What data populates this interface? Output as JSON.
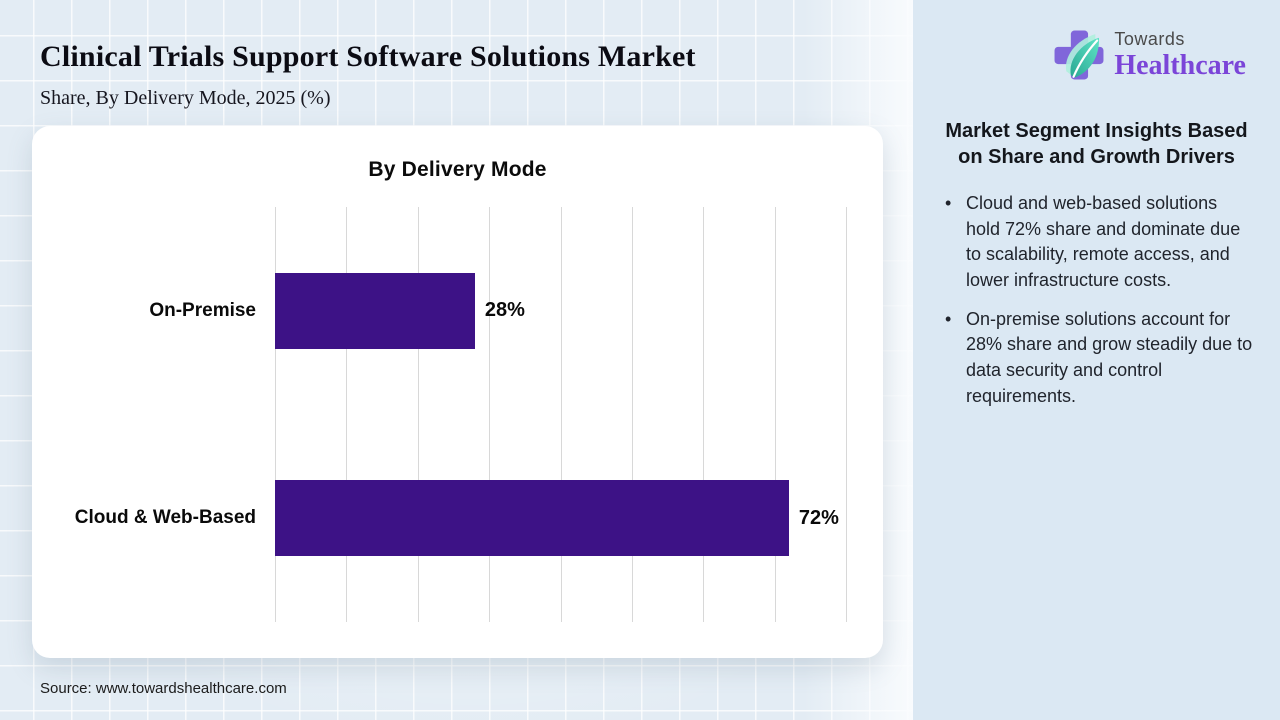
{
  "page": {
    "title": "Clinical Trials Support Software Solutions Market",
    "subtitle": "Share, By Delivery Mode, 2025 (%)",
    "source": "Source: www.towardshealthcare.com"
  },
  "logo": {
    "brand_top": "Towards",
    "brand_bottom": "Healthcare",
    "cross_color": "#8066da",
    "leaf_color_dark": "#2aa893",
    "leaf_color_light": "#5fe3c6",
    "brand_purple": "#7b45d8",
    "brand_gray": "#4a4a4a"
  },
  "sidebar": {
    "heading": "Market Segment Insights Based on Share and Growth Drivers",
    "bullets": [
      "Cloud and web-based solutions hold 72% share and dominate due to scalability, remote access, and lower infrastructure costs.",
      "On-premise solutions account for 28% share and grow steadily due to data security and control requirements."
    ]
  },
  "chart_data": {
    "type": "bar",
    "orientation": "horizontal",
    "title": "By Delivery Mode",
    "categories": [
      "On-Premise",
      "Cloud & Web-Based"
    ],
    "values": [
      28,
      72
    ],
    "value_labels": [
      "28%",
      "72%"
    ],
    "unit": "%",
    "xlabel": "",
    "ylabel": "",
    "xlim": [
      0,
      80
    ],
    "gridline_step": 10,
    "grid": "vertical-lines-only",
    "legend": "none",
    "bar_color": "#3d1286",
    "gridline_color": "#d8d8d8"
  }
}
